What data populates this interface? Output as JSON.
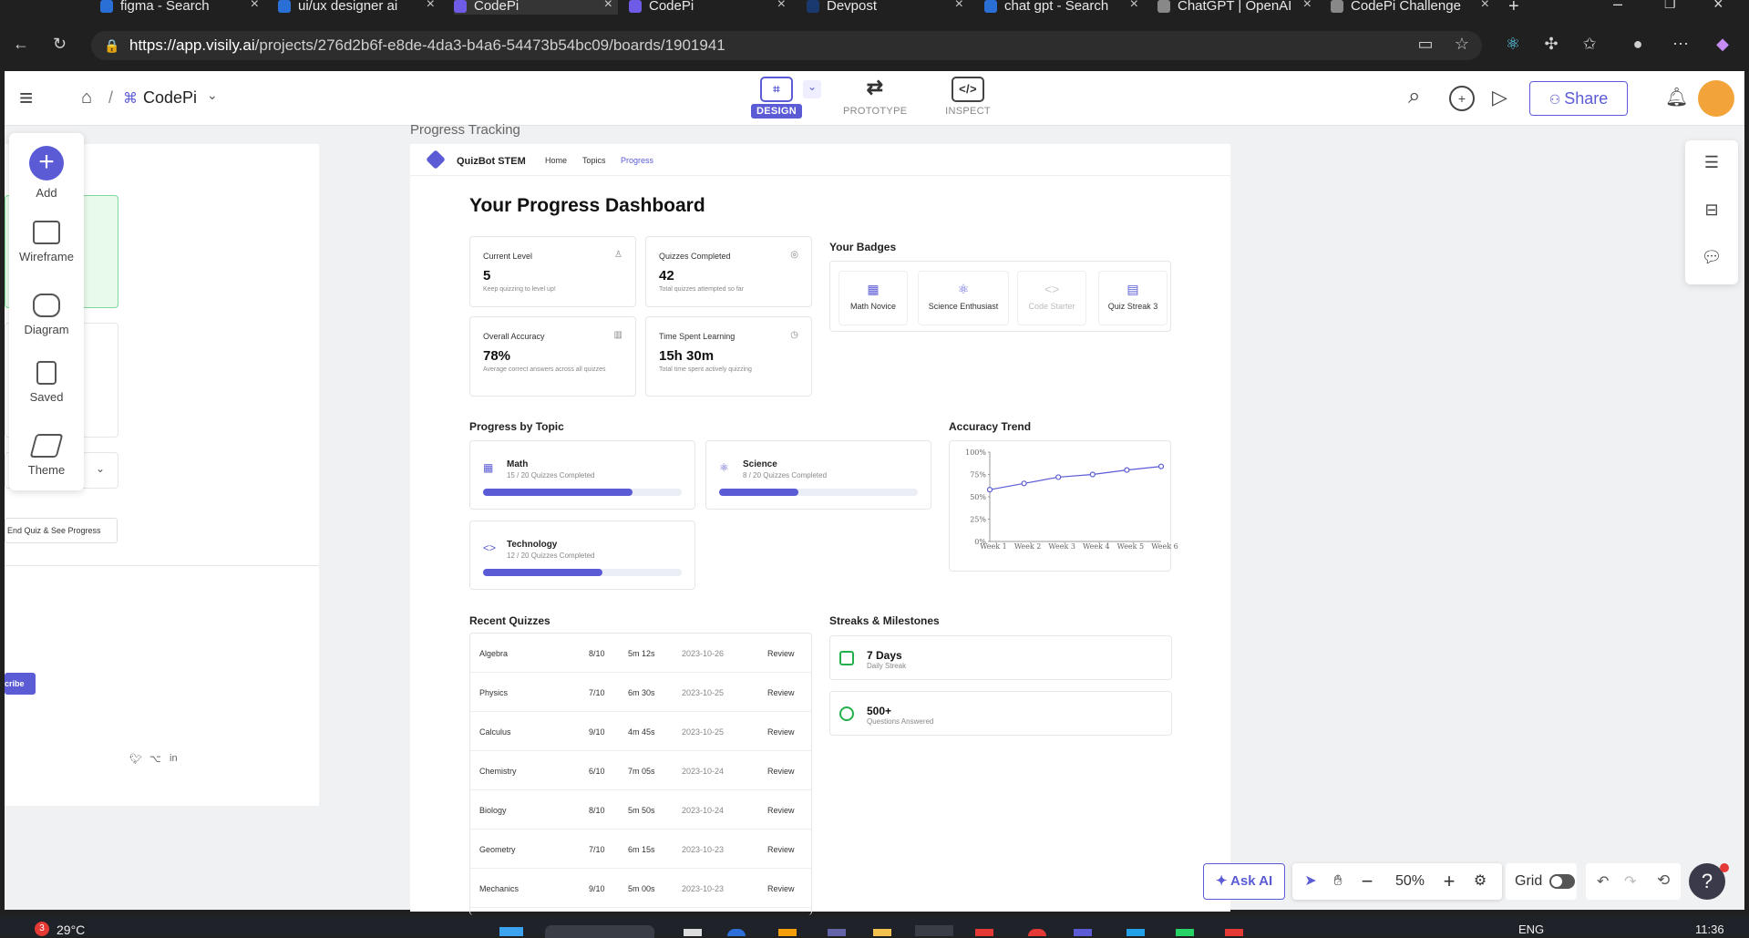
{
  "browser": {
    "tabs": [
      {
        "title": "figma - Search",
        "x": 110,
        "w": 180,
        "color": "#2a6fd6"
      },
      {
        "title": "ui/ux designer ai",
        "x": 305,
        "w": 178,
        "color": "#2a6fd6"
      },
      {
        "title": "CodePi",
        "x": 498,
        "w": 180,
        "color": "#6e5ce6",
        "active": true
      },
      {
        "title": "CodePi",
        "x": 690,
        "w": 178,
        "color": "#6e5ce6"
      },
      {
        "title": "Devpost",
        "x": 885,
        "w": 178,
        "color": "#1a3a6e"
      },
      {
        "title": "chat gpt - Search",
        "x": 1080,
        "w": 175,
        "color": "#2a6fd6"
      },
      {
        "title": "ChatGPT | OpenAI",
        "x": 1270,
        "w": 175,
        "color": "#888"
      },
      {
        "title": "CodePi Challenge",
        "x": 1460,
        "w": 180,
        "color": "#888"
      }
    ],
    "url_host": "https://app.visily.ai",
    "url_path": "/projects/276d2b6f-e8de-4da3-b4a6-54473b54bc09/boards/1901941"
  },
  "header": {
    "sep": "/",
    "project": "CodePi",
    "modes": [
      "DESIGN",
      "PROTOTYPE",
      "INSPECT"
    ],
    "share_label": "Share"
  },
  "tools": {
    "add": "Add",
    "wireframe": "Wireframe",
    "diagram": "Diagram",
    "saved": "Saved",
    "theme": "Theme"
  },
  "left_frame": {
    "button_label": "End Quiz & See Progress",
    "subscribe_label": "cribe"
  },
  "frame": {
    "title": "Progress Tracking",
    "brand": "QuizBot STEM",
    "nav": [
      "Home",
      "Topics",
      "Progress"
    ],
    "heading": "Your Progress Dashboard",
    "stats": [
      {
        "label": "Current Level",
        "value": "5",
        "sub": "Keep quizzing to level up!",
        "icon": "medal-icon"
      },
      {
        "label": "Quizzes Completed",
        "value": "42",
        "sub": "Total quizzes attempted so far",
        "icon": "target-icon"
      },
      {
        "label": "Overall Accuracy",
        "value": "78%",
        "sub": "Average correct answers across all quizzes",
        "icon": "bar-chart-icon"
      },
      {
        "label": "Time Spent Learning",
        "value": "15h 30m",
        "sub": "Total time spent actively quizzing",
        "icon": "clock-icon"
      }
    ],
    "badges_title": "Your Badges",
    "badges": [
      {
        "name": "Math Novice",
        "icon": "calculator-icon",
        "muted": false
      },
      {
        "name": "Science Enthusiast",
        "icon": "atom-icon",
        "muted": false
      },
      {
        "name": "Code Starter",
        "icon": "code-icon",
        "muted": true
      },
      {
        "name": "Quiz Streak 3",
        "icon": "calendar-icon",
        "muted": false
      }
    ],
    "topics_title": "Progress by Topic",
    "topics": [
      {
        "name": "Math",
        "sub": "15 / 20 Quizzes Completed",
        "progress": 0.75,
        "icon": "calculator-icon"
      },
      {
        "name": "Science",
        "sub": "8 / 20 Quizzes Completed",
        "progress": 0.4,
        "icon": "atom-icon"
      },
      {
        "name": "Technology",
        "sub": "12 / 20 Quizzes Completed",
        "progress": 0.6,
        "icon": "code-icon"
      }
    ],
    "trend_title": "Accuracy Trend",
    "recent_title": "Recent Quizzes",
    "recent": [
      {
        "subject": "Algebra",
        "score": "8/10",
        "time": "5m 12s",
        "date": "2023-10-26",
        "action": "Review"
      },
      {
        "subject": "Physics",
        "score": "7/10",
        "time": "6m 30s",
        "date": "2023-10-25",
        "action": "Review"
      },
      {
        "subject": "Calculus",
        "score": "9/10",
        "time": "4m 45s",
        "date": "2023-10-25",
        "action": "Review"
      },
      {
        "subject": "Chemistry",
        "score": "6/10",
        "time": "7m 05s",
        "date": "2023-10-24",
        "action": "Review"
      },
      {
        "subject": "Biology",
        "score": "8/10",
        "time": "5m 50s",
        "date": "2023-10-24",
        "action": "Review"
      },
      {
        "subject": "Geometry",
        "score": "7/10",
        "time": "6m 15s",
        "date": "2023-10-23",
        "action": "Review"
      },
      {
        "subject": "Mechanics",
        "score": "9/10",
        "time": "5m 00s",
        "date": "2023-10-23",
        "action": "Review"
      }
    ],
    "streaks_title": "Streaks & Milestones",
    "milestones": [
      {
        "value": "7 Days",
        "label": "Daily Streak",
        "icon": "calendar-icon"
      },
      {
        "value": "500+",
        "label": "Questions Answered",
        "icon": "question-icon"
      }
    ]
  },
  "chart_data": {
    "type": "line",
    "x": [
      "Week 1",
      "Week 2",
      "Week 3",
      "Week 4",
      "Week 5",
      "Week 6"
    ],
    "values": [
      58,
      65,
      72,
      75,
      80,
      84
    ],
    "ylim": [
      0,
      100
    ],
    "yticks": [
      "0%",
      "25%",
      "50%",
      "75%",
      "100%"
    ],
    "color": "#5b5bd6"
  },
  "bottom": {
    "ask_ai": "Ask AI",
    "zoom": "50%",
    "grid": "Grid"
  },
  "taskbar": {
    "temp": "29°C",
    "lang": "ENG",
    "time": "11:36"
  }
}
